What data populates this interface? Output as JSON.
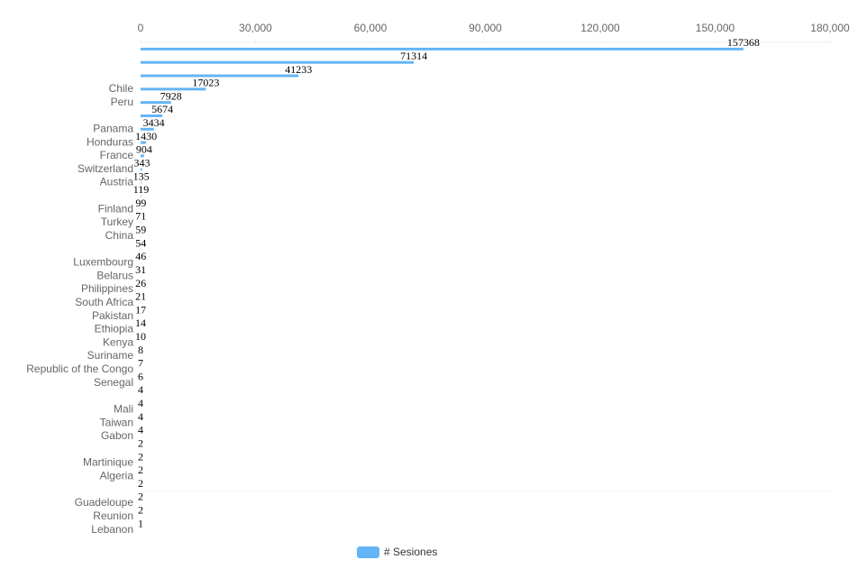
{
  "chart_data": {
    "type": "bar",
    "orientation": "horizontal",
    "categories": [
      null,
      null,
      null,
      "Chile",
      "Peru",
      null,
      "Panama",
      "Honduras",
      "France",
      "Switzerland",
      "Austria",
      null,
      "Finland",
      "Turkey",
      "China",
      null,
      "Luxembourg",
      "Belarus",
      "Philippines",
      "South Africa",
      "Pakistan",
      "Ethiopia",
      "Kenya",
      "Suriname",
      "Republic of the Congo",
      "Senegal",
      null,
      "Mali",
      "Taiwan",
      "Gabon",
      null,
      "Martinique",
      "Algeria",
      null,
      "Guadeloupe",
      "Reunion",
      "Lebanon"
    ],
    "series": [
      {
        "name": "# Sesiones",
        "color": "#64b5f6",
        "values": [
          157368,
          71314,
          41233,
          17023,
          7928,
          5674,
          3434,
          1430,
          904,
          343,
          135,
          119,
          99,
          71,
          59,
          54,
          46,
          31,
          26,
          21,
          17,
          14,
          10,
          8,
          7,
          6,
          4,
          4,
          4,
          4,
          2,
          2,
          2,
          2,
          2,
          2,
          1
        ]
      }
    ],
    "xlim": [
      0,
      180000
    ],
    "xticks": [
      0,
      {
        "value": 30000,
        "label": "30,000"
      },
      {
        "value": 60000,
        "label": "60,000"
      },
      {
        "value": 90000,
        "label": "90,000"
      },
      {
        "value": 120000,
        "label": "120,000"
      },
      {
        "value": 150000,
        "label": "150,000"
      },
      {
        "value": 180000,
        "label": "180,000"
      }
    ],
    "legend": "bottom"
  }
}
